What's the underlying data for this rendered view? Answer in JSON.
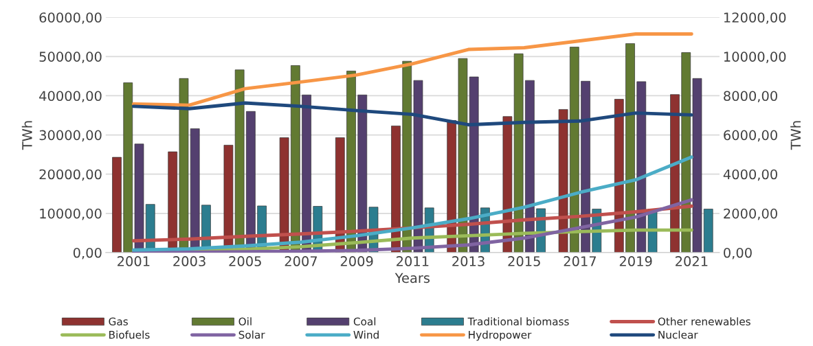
{
  "chart_data": {
    "type": "bar",
    "xlabel": "Years",
    "ylabel": "TWh",
    "y2label": "TWh",
    "categories": [
      "2001",
      "2003",
      "2005",
      "2007",
      "2009",
      "2011",
      "2013",
      "2015",
      "2017",
      "2019",
      "2021"
    ],
    "ylim": [
      0,
      60000
    ],
    "yticks": [
      {
        "value": 0,
        "label": "0,00"
      },
      {
        "value": 10000,
        "label": "10000,00"
      },
      {
        "value": 20000,
        "label": "20000,00"
      },
      {
        "value": 30000,
        "label": "30000,00"
      },
      {
        "value": 40000,
        "label": "40000,00"
      },
      {
        "value": 50000,
        "label": "50000,00"
      },
      {
        "value": 60000,
        "label": "60000,00"
      }
    ],
    "y2lim": [
      0,
      12000
    ],
    "y2ticks": [
      {
        "value": 0,
        "label": "0,00"
      },
      {
        "value": 2000,
        "label": "2000,00"
      },
      {
        "value": 4000,
        "label": "4000,00"
      },
      {
        "value": 6000,
        "label": "6000,00"
      },
      {
        "value": 8000,
        "label": "8000,00"
      },
      {
        "value": 10000,
        "label": "10000,00"
      },
      {
        "value": 12000,
        "label": "12000,00"
      }
    ],
    "grid": "y",
    "legend": "bottom",
    "series": [
      {
        "name": "Gas",
        "color": "#8e3230",
        "values": [
          24300,
          25700,
          27400,
          29300,
          29300,
          32300,
          33700,
          34700,
          36500,
          39100,
          40300
        ]
      },
      {
        "name": "Oil",
        "color": "#627a32",
        "values": [
          43300,
          44400,
          46600,
          47700,
          46300,
          48800,
          49500,
          50700,
          52400,
          53300,
          51000
        ]
      },
      {
        "name": "Coal",
        "color": "#54406f",
        "values": [
          27700,
          31600,
          36000,
          40200,
          40200,
          43900,
          44800,
          43900,
          43700,
          43600,
          44400
        ]
      },
      {
        "name": "Traditional biomass",
        "color": "#2c7d8f",
        "values": [
          12300,
          12100,
          11900,
          11800,
          11600,
          11400,
          11400,
          11200,
          11100,
          11100,
          11100
        ]
      },
      {
        "name": "Other renewables",
        "type": "line",
        "axis": "y2",
        "color": "#c0504d",
        "values": [
          600,
          690,
          830,
          950,
          1090,
          1260,
          1440,
          1670,
          1850,
          2080,
          2370
        ]
      },
      {
        "name": "Biofuels",
        "type": "line",
        "axis": "y2",
        "color": "#9bbb59",
        "values": [
          70,
          100,
          170,
          300,
          510,
          740,
          860,
          980,
          1070,
          1150,
          1150
        ]
      },
      {
        "name": "Solar",
        "type": "line",
        "axis": "y2",
        "color": "#8064a2",
        "values": [
          10,
          20,
          40,
          70,
          110,
          220,
          390,
          740,
          1270,
          1810,
          2690
        ]
      },
      {
        "name": "Wind",
        "type": "line",
        "axis": "y2",
        "color": "#4bacc6",
        "values": [
          130,
          190,
          340,
          530,
          860,
          1260,
          1730,
          2310,
          3070,
          3710,
          4870
        ]
      },
      {
        "name": "Hydropower",
        "type": "line",
        "axis": "y2",
        "color": "#f79646",
        "values": [
          7580,
          7520,
          8360,
          8700,
          9060,
          9630,
          10360,
          10450,
          10800,
          11150,
          11150
        ]
      },
      {
        "name": "Nuclear",
        "type": "line",
        "axis": "y2",
        "color": "#1f497d",
        "values": [
          7460,
          7340,
          7630,
          7460,
          7240,
          7050,
          6520,
          6640,
          6710,
          7120,
          7020
        ]
      }
    ]
  }
}
